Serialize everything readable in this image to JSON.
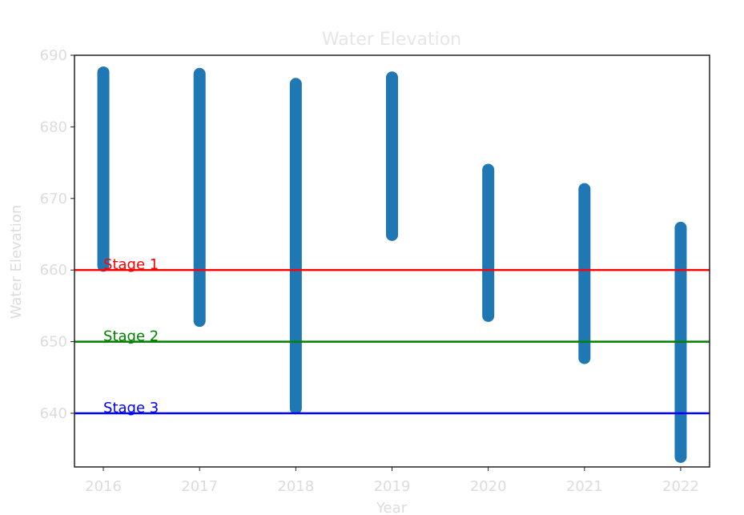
{
  "chart_data": {
    "type": "scatter",
    "title": "Water Elevation",
    "xlabel": "Year",
    "ylabel": "Water Elevation",
    "xlim": [
      2015.7,
      2022.3
    ],
    "ylim": [
      632.5,
      690.0
    ],
    "xticks": [
      "2016",
      "2017",
      "2018",
      "2019",
      "2020",
      "2021",
      "2022"
    ],
    "yticks": [
      "640",
      "650",
      "660",
      "670",
      "680",
      "690"
    ],
    "grid": false,
    "marker_color": "#1f77b4",
    "series": [
      {
        "x": 2016,
        "y_min": 660.6,
        "y_max": 687.6
      },
      {
        "x": 2017,
        "y_min": 652.9,
        "y_max": 687.4
      },
      {
        "x": 2018,
        "y_min": 640.7,
        "y_max": 686.0
      },
      {
        "x": 2019,
        "y_min": 664.9,
        "y_max": 686.9
      },
      {
        "x": 2020,
        "y_min": 653.6,
        "y_max": 674.0
      },
      {
        "x": 2021,
        "y_min": 647.7,
        "y_max": 671.3
      },
      {
        "x": 2022,
        "y_min": 633.9,
        "y_max": 665.9
      }
    ],
    "reference_lines": [
      {
        "y": 660,
        "label": "Stage 1",
        "color": "#ff0000"
      },
      {
        "y": 650,
        "label": "Stage 2",
        "color": "#008000"
      },
      {
        "y": 640,
        "label": "Stage 3",
        "color": "#0000ff"
      }
    ]
  }
}
